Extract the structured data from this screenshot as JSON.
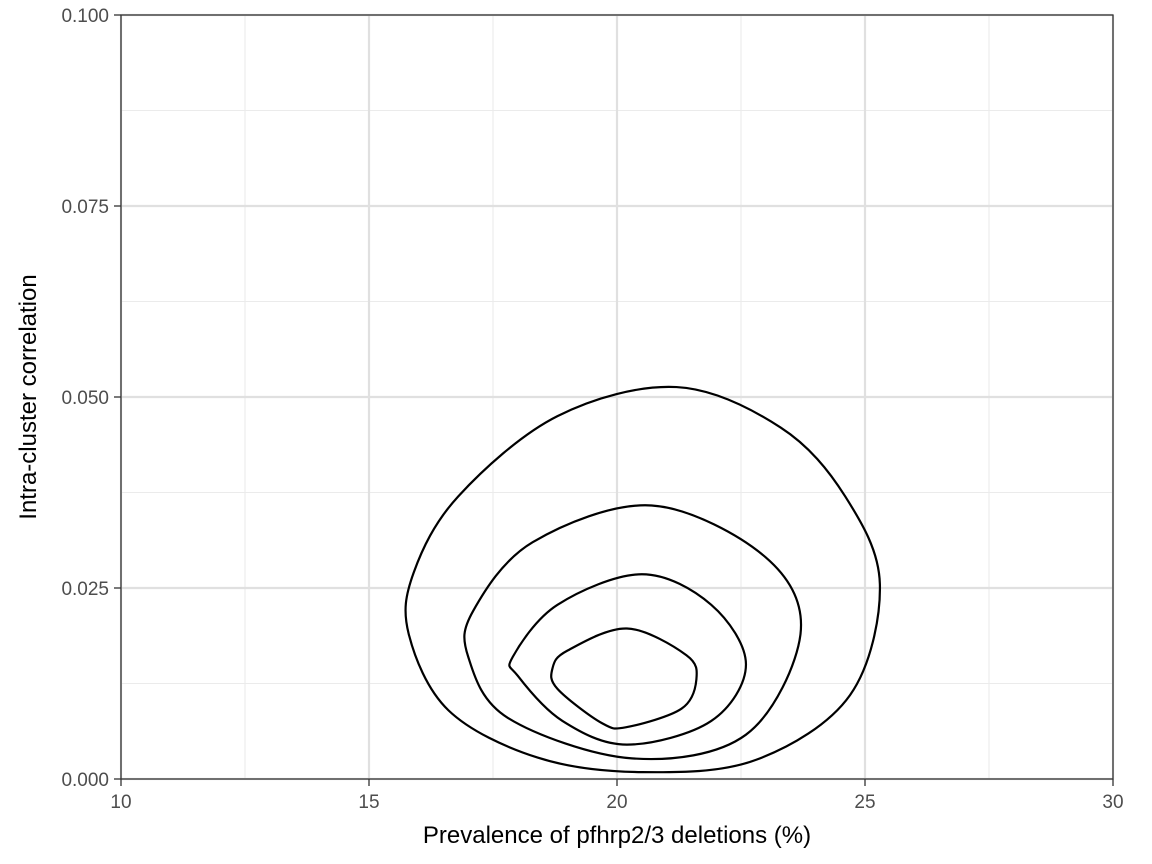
{
  "chart_data": {
    "type": "contour",
    "title": "",
    "xlabel": "Prevalence of pfhrp2/3 deletions (%)",
    "ylabel": "Intra-cluster correlation",
    "xlim": [
      10,
      30
    ],
    "ylim": [
      0,
      0.1
    ],
    "x_ticks": [
      10,
      15,
      20,
      25,
      30
    ],
    "x_tick_labels": [
      "10",
      "15",
      "20",
      "25",
      "30"
    ],
    "y_ticks": [
      0,
      0.025,
      0.05,
      0.075,
      0.1
    ],
    "y_tick_labels": [
      "0.000",
      "0.025",
      "0.050",
      "0.075",
      "0.100"
    ],
    "grid": true,
    "legend": "none",
    "line_color": "#000000",
    "contours": [
      {
        "points": [
          [
            25.3,
            0.0255
          ],
          [
            24.6,
            0.037
          ],
          [
            23.3,
            0.046
          ],
          [
            21.2,
            0.0513
          ],
          [
            18.8,
            0.0475
          ],
          [
            16.8,
            0.037
          ],
          [
            15.9,
            0.027
          ],
          [
            15.8,
            0.019
          ],
          [
            16.6,
            0.009
          ],
          [
            18.4,
            0.0028
          ],
          [
            20.5,
            0.0009
          ],
          [
            22.8,
            0.0025
          ],
          [
            24.7,
            0.011
          ]
        ]
      },
      {
        "points": [
          [
            23.7,
            0.019
          ],
          [
            23.0,
            0.029
          ],
          [
            20.7,
            0.0358
          ],
          [
            18.3,
            0.031
          ],
          [
            17.1,
            0.022
          ],
          [
            17.0,
            0.016
          ],
          [
            17.8,
            0.008
          ],
          [
            20.3,
            0.0027
          ],
          [
            22.6,
            0.0058
          ]
        ]
      },
      {
        "points": [
          [
            22.6,
            0.015
          ],
          [
            21.9,
            0.0228
          ],
          [
            20.5,
            0.0268
          ],
          [
            18.8,
            0.0228
          ],
          [
            17.9,
            0.016
          ],
          [
            18.0,
            0.0135
          ],
          [
            18.9,
            0.0076
          ],
          [
            20.2,
            0.0045
          ],
          [
            21.9,
            0.0076
          ]
        ]
      },
      {
        "points": [
          [
            21.6,
            0.013
          ],
          [
            21.4,
            0.0162
          ],
          [
            20.2,
            0.0197
          ],
          [
            19.0,
            0.0168
          ],
          [
            18.7,
            0.0145
          ],
          [
            18.8,
            0.0118
          ],
          [
            19.7,
            0.0073
          ],
          [
            20.2,
            0.0068
          ],
          [
            21.3,
            0.0092
          ]
        ]
      }
    ]
  }
}
